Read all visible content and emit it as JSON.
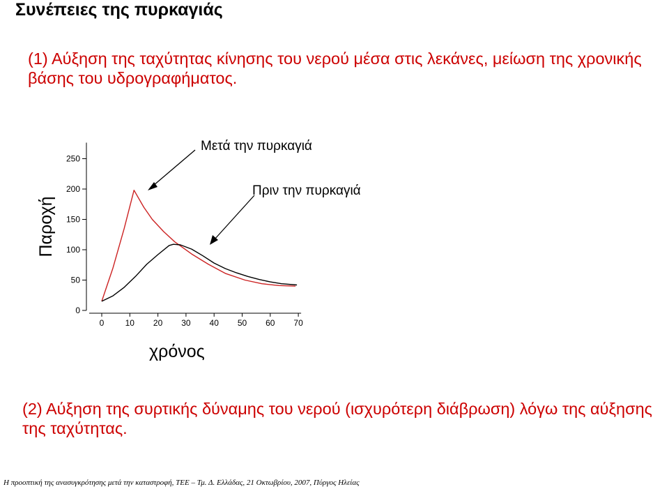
{
  "page": {
    "title": "Συνέπειες της πυρκαγιάς",
    "point1": "(1) Αύξηση της ταχύτητας κίνησης του νερού μέσα στις λεκάνες, μείωση της χρονικής βάσης του υδρογραφήματος.",
    "point2": "(2) Αύξηση της συρτικής δύναμης του νερού (ισχυρότερη διάβρωση) λόγω της αύξησης της ταχύτητας.",
    "footer": "Η προοπτική της ανασυγκρότησης μετά την καταστροφή, ΤΕΕ – Τμ. Δ. Ελλάδας, 21 Οκτωβρίου, 2007, Πύργος Ηλείας"
  },
  "chart_data": {
    "type": "line",
    "xlabel": "χρόνος",
    "ylabel": "Παροχή",
    "xlim": [
      0,
      70
    ],
    "ylim": [
      0,
      250
    ],
    "xticks": [
      "0",
      "10",
      "20",
      "30",
      "40",
      "50",
      "60",
      "70"
    ],
    "yticks": [
      "0",
      "50",
      "100",
      "150",
      "200",
      "250"
    ],
    "series": [
      {
        "name": "Μετά την πυρκαγιά",
        "color": "#cc2222",
        "x": [
          0,
          4,
          8,
          11.5,
          15,
          18,
          22,
          26,
          32,
          38,
          44,
          51,
          57,
          63,
          69
        ],
        "y": [
          15,
          70,
          135,
          198,
          170,
          150,
          130,
          113,
          93,
          76,
          61,
          50,
          44,
          41,
          40
        ]
      },
      {
        "name": "Πριν την πυρκαγιά",
        "color": "#000000",
        "x": [
          0,
          4,
          8,
          12,
          16,
          20,
          24,
          25.5,
          28,
          32,
          36,
          40,
          44,
          48,
          52,
          56,
          60,
          64,
          69.5
        ],
        "y": [
          15,
          24,
          38,
          56,
          76,
          92,
          107,
          109,
          108,
          101,
          90,
          78,
          69,
          62,
          56,
          51,
          47,
          44,
          42
        ]
      }
    ]
  }
}
